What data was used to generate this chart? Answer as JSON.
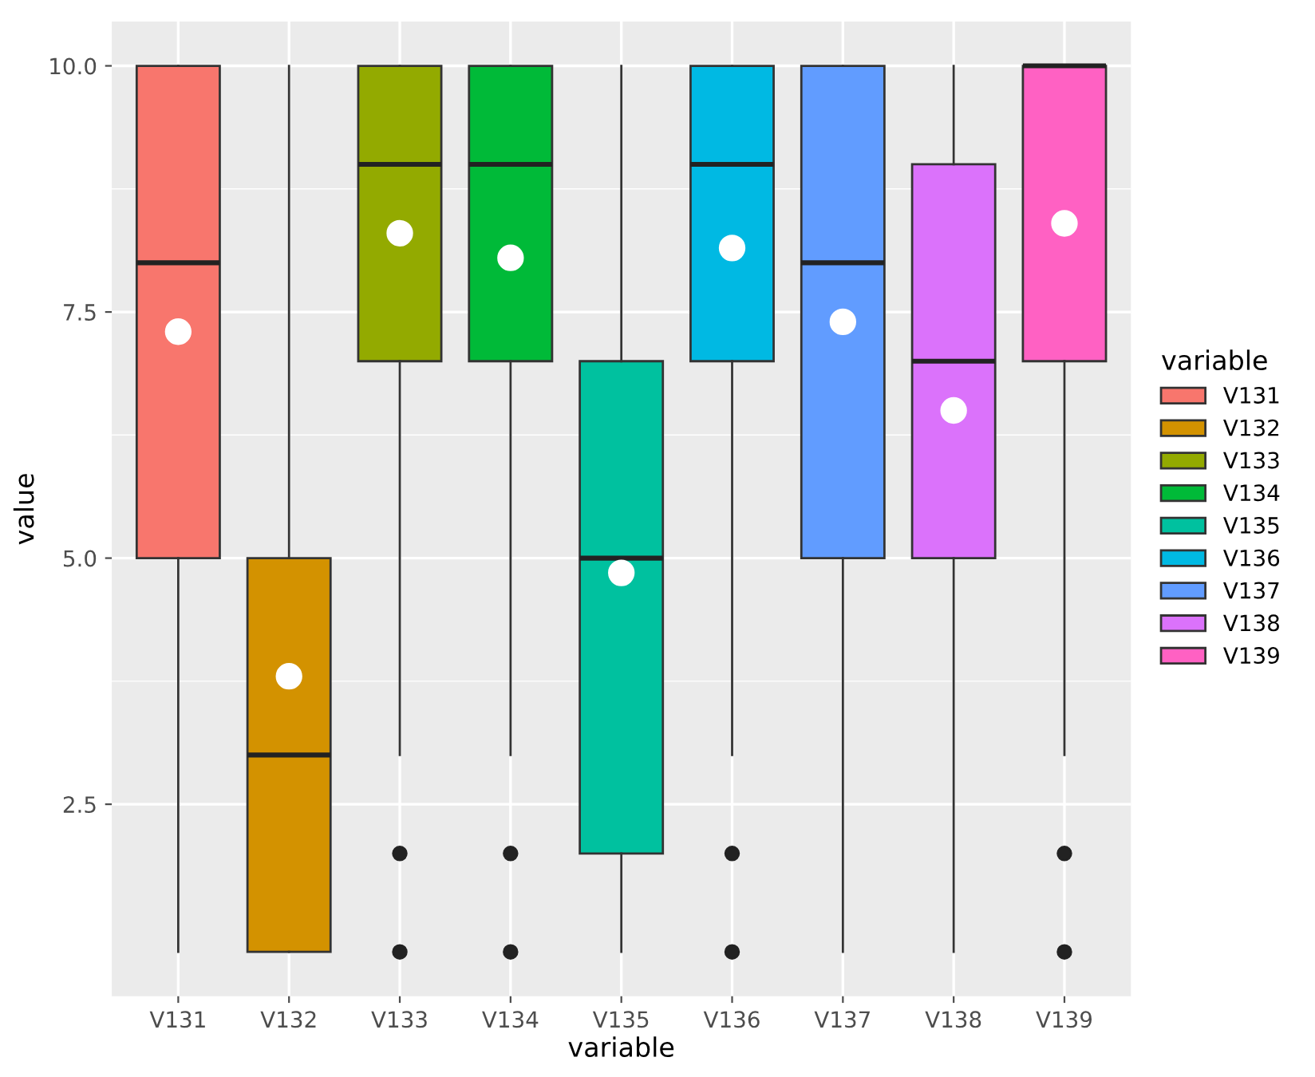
{
  "chart_data": {
    "type": "box",
    "xlabel": "variable",
    "ylabel": "value",
    "legend_title": "variable",
    "legend": "right",
    "grid": true,
    "categories": [
      "V131",
      "V132",
      "V133",
      "V134",
      "V135",
      "V136",
      "V137",
      "V138",
      "V139"
    ],
    "series": [
      {
        "name": "V131",
        "color": "#f8766d",
        "boxes": [
          {
            "low": 1,
            "q1": 5,
            "median": 8,
            "q3": 10,
            "high": 10,
            "mean": 7.3
          },
          null,
          null,
          null,
          null,
          null,
          null,
          null,
          null
        ]
      },
      {
        "name": "V132",
        "color": "#d39200",
        "boxes": [
          null,
          {
            "low": 1,
            "q1": 1,
            "median": 3,
            "q3": 5,
            "high": 10,
            "mean": 3.8
          },
          null,
          null,
          null,
          null,
          null,
          null,
          null
        ]
      },
      {
        "name": "V133",
        "color": "#93aa00",
        "boxes": [
          null,
          null,
          {
            "low": 3,
            "q1": 7,
            "median": 9,
            "q3": 10,
            "high": 10,
            "mean": 8.3,
            "outliers": [
              2,
              1
            ]
          },
          null,
          null,
          null,
          null,
          null,
          null
        ]
      },
      {
        "name": "V134",
        "color": "#00ba38",
        "boxes": [
          null,
          null,
          null,
          {
            "low": 3,
            "q1": 7,
            "median": 9,
            "q3": 10,
            "high": 10,
            "mean": 8.05,
            "outliers": [
              2,
              1
            ]
          },
          null,
          null,
          null,
          null,
          null
        ]
      },
      {
        "name": "V135",
        "color": "#00c19f",
        "boxes": [
          null,
          null,
          null,
          null,
          {
            "low": 1,
            "q1": 2,
            "median": 5,
            "q3": 7,
            "high": 10,
            "mean": 4.85
          },
          null,
          null,
          null,
          null
        ]
      },
      {
        "name": "V136",
        "color": "#00b9e3",
        "boxes": [
          null,
          null,
          null,
          null,
          null,
          {
            "low": 3,
            "q1": 7,
            "median": 9,
            "q3": 10,
            "high": 10,
            "mean": 8.15,
            "outliers": [
              2,
              1
            ]
          },
          null,
          null,
          null
        ]
      },
      {
        "name": "V137",
        "color": "#619cff",
        "boxes": [
          null,
          null,
          null,
          null,
          null,
          null,
          {
            "low": 1,
            "q1": 5,
            "median": 8,
            "q3": 10,
            "high": 10,
            "mean": 7.4
          },
          null,
          null
        ]
      },
      {
        "name": "V138",
        "color": "#db72fb",
        "boxes": [
          null,
          null,
          null,
          null,
          null,
          null,
          null,
          {
            "low": 1,
            "q1": 5,
            "median": 7,
            "q3": 9,
            "high": 10,
            "mean": 6.5
          },
          null
        ]
      },
      {
        "name": "V139",
        "color": "#ff61c3",
        "boxes": [
          null,
          null,
          null,
          null,
          null,
          null,
          null,
          null,
          {
            "low": 3,
            "q1": 7,
            "median": 10,
            "q3": 10,
            "high": 10,
            "mean": 8.4,
            "outliers": [
              2,
              1
            ]
          }
        ]
      }
    ],
    "ylim": [
      0.55,
      10.45
    ],
    "yticks": [
      2.5,
      {
        "value": 5,
        "label": "5.0"
      },
      7.5,
      {
        "value": 10,
        "label": "10.0"
      }
    ]
  }
}
